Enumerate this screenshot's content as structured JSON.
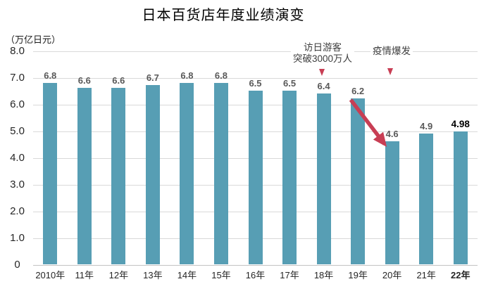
{
  "chart_data": {
    "type": "bar",
    "title": "日本百货店年度业绩演变",
    "unit_label": "（万亿日元）",
    "categories": [
      "2010年",
      "11年",
      "12年",
      "13年",
      "14年",
      "15年",
      "16年",
      "17年",
      "18年",
      "19年",
      "20年",
      "21年",
      "22年"
    ],
    "values": [
      6.8,
      6.6,
      6.6,
      6.7,
      6.8,
      6.8,
      6.5,
      6.5,
      6.4,
      6.2,
      4.6,
      4.9,
      4.98
    ],
    "value_labels": [
      "6.8",
      "6.6",
      "6.6",
      "6.7",
      "6.8",
      "6.8",
      "6.5",
      "6.5",
      "6.4",
      "6.2",
      "4.6",
      "4.9",
      "4.98"
    ],
    "emphasized_index": 12,
    "ylim": [
      0,
      8
    ],
    "yticks": [
      "8.0",
      "7.0",
      "6.0",
      "5.0",
      "4.0",
      "3.0",
      "2.0",
      "1.0",
      "0"
    ],
    "grid": true,
    "legend": "none",
    "bar_color": "#579eb4",
    "gridline_color": "#d9d9d9",
    "accent_red": "#c83e54",
    "value_label_color": "#595959",
    "annotations": [
      {
        "lines": [
          "访日游客",
          "突破3000万人"
        ],
        "target_category": "18年"
      },
      {
        "lines": [
          "疫情爆发"
        ],
        "target_category": "20年"
      }
    ],
    "arrow": {
      "from_category": "19年",
      "from_value": 6.2,
      "to_category": "20年",
      "to_value": 4.6
    }
  }
}
